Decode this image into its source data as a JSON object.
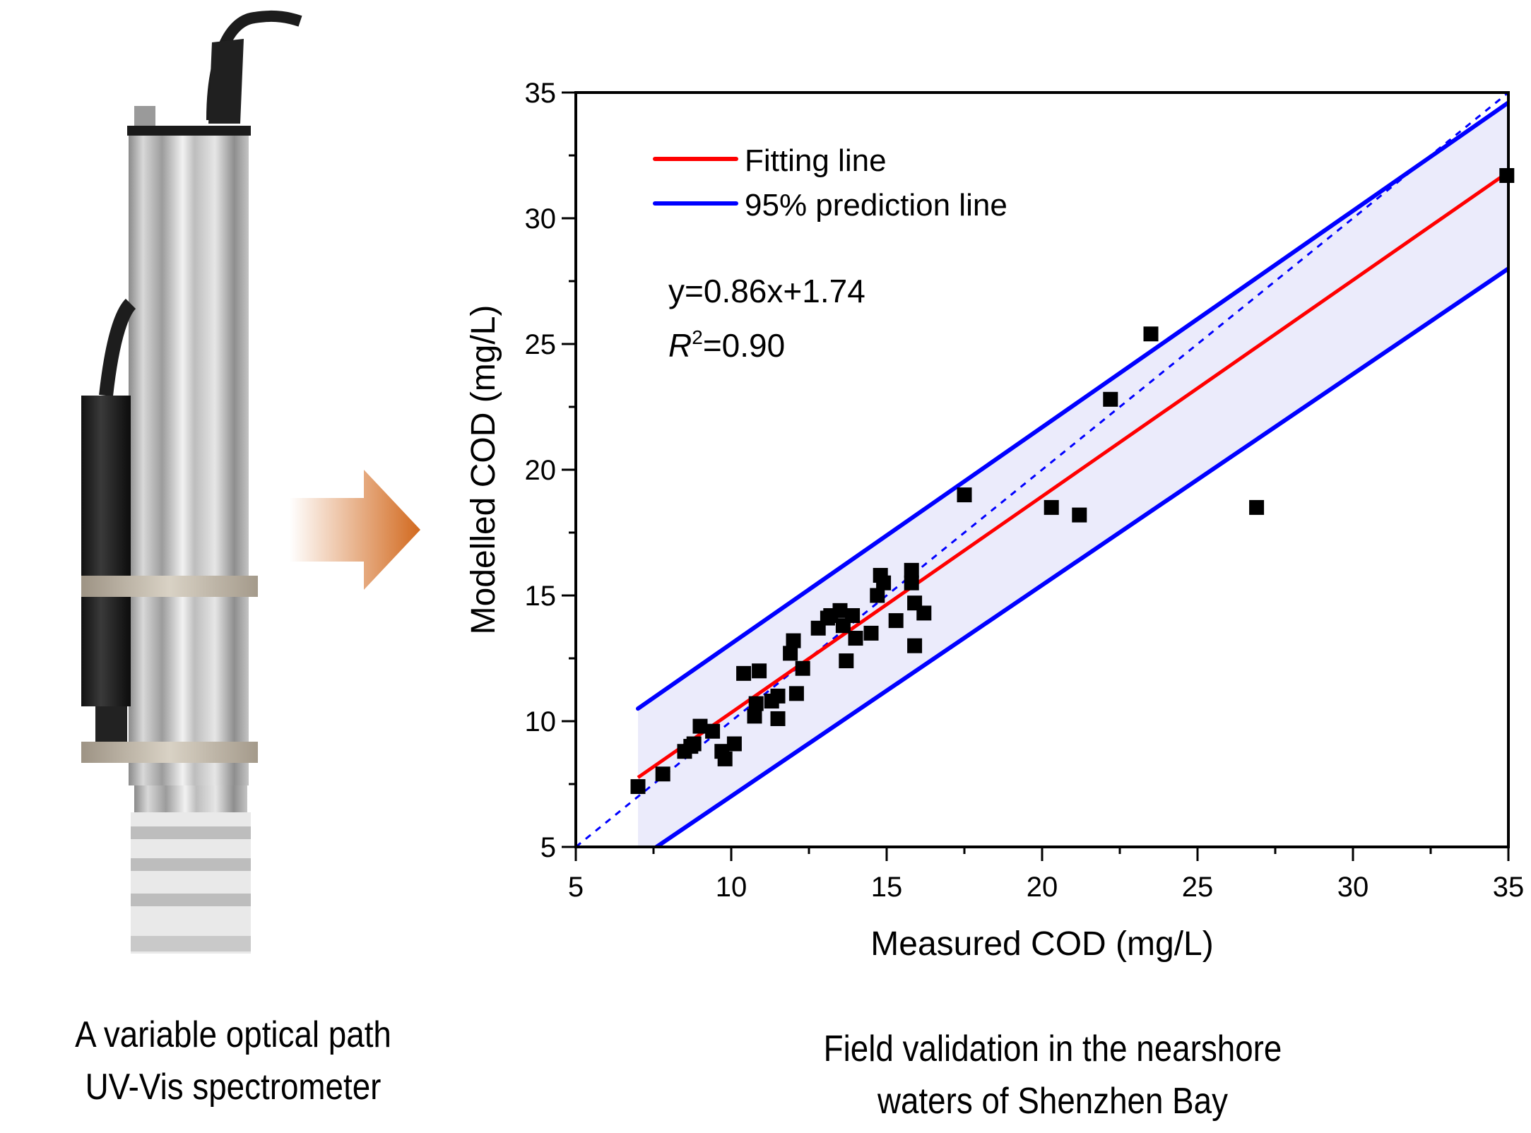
{
  "left_caption": {
    "line1": "A variable optical path",
    "line2": "UV-Vis spectrometer"
  },
  "right_caption": {
    "line1": "Field validation in the nearshore",
    "line2": "waters of Shenzhen Bay"
  },
  "device_image": {
    "name": "uv-vis-spectrometer-photo"
  },
  "arrow": {
    "color": "#d2691e"
  },
  "chart_data": {
    "type": "scatter",
    "title": "",
    "xlabel": "Measured COD (mg/L)",
    "ylabel": "Modelled COD (mg/L)",
    "xlim": [
      5,
      35
    ],
    "ylim": [
      5,
      35
    ],
    "xticks": [
      5,
      10,
      15,
      20,
      25,
      30,
      35
    ],
    "yticks": [
      5,
      10,
      15,
      20,
      25,
      30,
      35
    ],
    "grid": false,
    "legend": {
      "position": "top-left",
      "entries": [
        {
          "label": "Fitting line",
          "color": "#ff0000"
        },
        {
          "label": "95% prediction line",
          "color": "#0000ff"
        }
      ]
    },
    "annotations": {
      "equation": "y=0.86x+1.74",
      "r2_label": "R",
      "r2_sup": "2",
      "r2_value": "=0.90"
    },
    "fit_line": {
      "slope": 0.86,
      "intercept": 1.74,
      "x_range": [
        7.0,
        35
      ],
      "color": "#ff0000"
    },
    "prediction_band": {
      "upper": [
        [
          7.0,
          10.5
        ],
        [
          35,
          34.6
        ]
      ],
      "lower": [
        [
          7.0,
          4.5
        ],
        [
          35,
          28.0
        ]
      ],
      "fill": "#ebebfb",
      "color": "#0000ff"
    },
    "identity_line": {
      "points": [
        [
          5,
          5
        ],
        [
          35,
          35
        ]
      ],
      "style": "dashed",
      "color": "#0000ff"
    },
    "points": {
      "marker": "square",
      "color": "#000000",
      "x": [
        7.0,
        7.8,
        8.5,
        8.7,
        8.8,
        9.0,
        9.4,
        9.7,
        9.8,
        10.1,
        10.4,
        10.9,
        10.75,
        10.8,
        11.3,
        11.5,
        11.5,
        11.9,
        12.0,
        12.1,
        12.3,
        12.8,
        13.1,
        13.2,
        13.5,
        13.6,
        13.7,
        13.9,
        14.0,
        14.5,
        14.8,
        14.9,
        14.7,
        15.3,
        15.8,
        15.8,
        15.9,
        15.9,
        16.2,
        17.5,
        20.3,
        21.2,
        22.2,
        23.5,
        26.9,
        34.95
      ],
      "y": [
        7.4,
        7.9,
        8.8,
        9.0,
        9.1,
        9.8,
        9.6,
        8.8,
        8.5,
        9.1,
        11.9,
        12.0,
        10.2,
        10.7,
        10.8,
        11.0,
        10.1,
        12.7,
        13.2,
        11.1,
        12.1,
        13.7,
        14.1,
        14.2,
        14.4,
        13.8,
        12.4,
        14.2,
        13.3,
        13.5,
        15.8,
        15.5,
        15.0,
        14.0,
        16.0,
        15.5,
        14.7,
        13.0,
        14.3,
        19.0,
        18.5,
        18.2,
        22.8,
        25.4,
        18.5,
        31.7
      ]
    }
  }
}
